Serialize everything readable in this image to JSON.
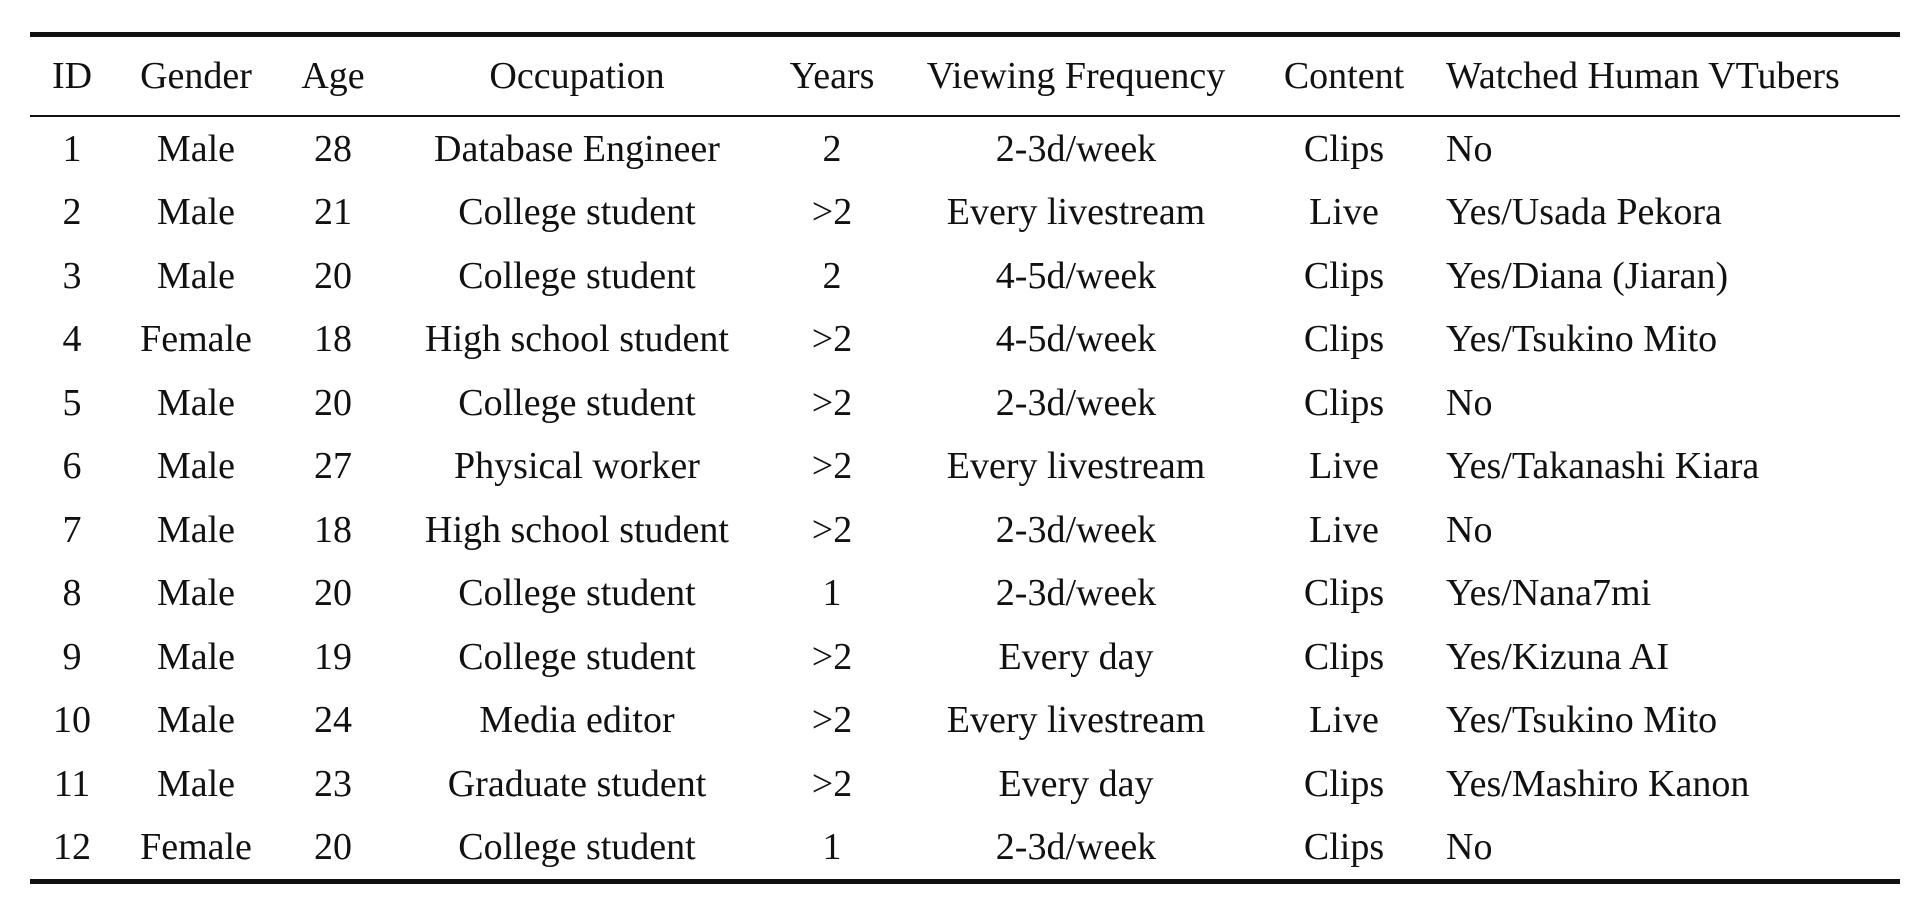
{
  "table": {
    "headers": {
      "id": "ID",
      "gender": "Gender",
      "age": "Age",
      "occupation": "Occupation",
      "years": "Years",
      "frequency": "Viewing Frequency",
      "content": "Content",
      "watched": "Watched Human VTubers"
    },
    "rows": [
      {
        "id": "1",
        "gender": "Male",
        "age": "28",
        "occupation": "Database Engineer",
        "years": "2",
        "frequency": "2-3d/week",
        "content": "Clips",
        "watched": "No"
      },
      {
        "id": "2",
        "gender": "Male",
        "age": "21",
        "occupation": "College student",
        "years": ">2",
        "frequency": "Every livestream",
        "content": "Live",
        "watched": "Yes/Usada Pekora"
      },
      {
        "id": "3",
        "gender": "Male",
        "age": "20",
        "occupation": "College student",
        "years": "2",
        "frequency": "4-5d/week",
        "content": "Clips",
        "watched": "Yes/Diana (Jiaran)"
      },
      {
        "id": "4",
        "gender": "Female",
        "age": "18",
        "occupation": "High school student",
        "years": ">2",
        "frequency": "4-5d/week",
        "content": "Clips",
        "watched": "Yes/Tsukino Mito"
      },
      {
        "id": "5",
        "gender": "Male",
        "age": "20",
        "occupation": "College student",
        "years": ">2",
        "frequency": "2-3d/week",
        "content": "Clips",
        "watched": "No"
      },
      {
        "id": "6",
        "gender": "Male",
        "age": "27",
        "occupation": "Physical worker",
        "years": ">2",
        "frequency": "Every livestream",
        "content": "Live",
        "watched": "Yes/Takanashi Kiara"
      },
      {
        "id": "7",
        "gender": "Male",
        "age": "18",
        "occupation": "High school student",
        "years": ">2",
        "frequency": "2-3d/week",
        "content": "Live",
        "watched": "No"
      },
      {
        "id": "8",
        "gender": "Male",
        "age": "20",
        "occupation": "College student",
        "years": "1",
        "frequency": "2-3d/week",
        "content": "Clips",
        "watched": "Yes/Nana7mi"
      },
      {
        "id": "9",
        "gender": "Male",
        "age": "19",
        "occupation": "College student",
        "years": ">2",
        "frequency": "Every day",
        "content": "Clips",
        "watched": "Yes/Kizuna AI"
      },
      {
        "id": "10",
        "gender": "Male",
        "age": "24",
        "occupation": "Media editor",
        "years": ">2",
        "frequency": "Every livestream",
        "content": "Live",
        "watched": "Yes/Tsukino Mito"
      },
      {
        "id": "11",
        "gender": "Male",
        "age": "23",
        "occupation": "Graduate student",
        "years": ">2",
        "frequency": "Every day",
        "content": "Clips",
        "watched": "Yes/Mashiro Kanon"
      },
      {
        "id": "12",
        "gender": "Female",
        "age": "20",
        "occupation": "College student",
        "years": "1",
        "frequency": "2-3d/week",
        "content": "Clips",
        "watched": "No"
      }
    ]
  }
}
